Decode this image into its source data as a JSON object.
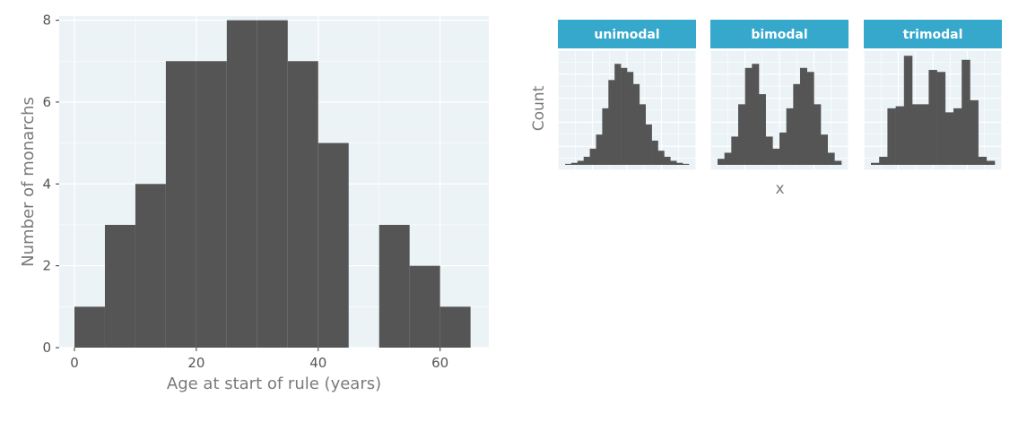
{
  "colors": {
    "panel_bg": "#ebf3f6",
    "grid": "#ffffff",
    "bar": "#555555",
    "strip": "#36a8cc",
    "strip_text": "#ffffff"
  },
  "chart_data": [
    {
      "type": "bar",
      "title": "",
      "xlabel": "Age at start of rule (years)",
      "ylabel": "Number of monarchs",
      "binwidth": 5,
      "bins": [
        {
          "x0": 0,
          "x1": 5,
          "count": 1
        },
        {
          "x0": 5,
          "x1": 10,
          "count": 3
        },
        {
          "x0": 10,
          "x1": 15,
          "count": 4
        },
        {
          "x0": 15,
          "x1": 20,
          "count": 7
        },
        {
          "x0": 20,
          "x1": 25,
          "count": 7
        },
        {
          "x0": 25,
          "x1": 30,
          "count": 8
        },
        {
          "x0": 30,
          "x1": 35,
          "count": 8
        },
        {
          "x0": 35,
          "x1": 40,
          "count": 7
        },
        {
          "x0": 40,
          "x1": 45,
          "count": 5
        },
        {
          "x0": 45,
          "x1": 50,
          "count": 0
        },
        {
          "x0": 50,
          "x1": 55,
          "count": 3
        },
        {
          "x0": 55,
          "x1": 60,
          "count": 2
        },
        {
          "x0": 60,
          "x1": 65,
          "count": 1
        }
      ],
      "xticks": [
        "0",
        "20",
        "40",
        "60"
      ],
      "yticks": [
        "0",
        "2",
        "4",
        "6",
        "8"
      ],
      "xlim": [
        -2.5,
        68
      ],
      "ylim": [
        0,
        8.1
      ],
      "grid": true
    },
    {
      "type": "bar",
      "title": "",
      "xlabel": "x",
      "ylabel": "Count",
      "facets": [
        {
          "label": "unimodal",
          "counts": [
            0.5,
            1,
            2,
            4,
            8,
            15,
            28,
            42,
            50,
            48,
            46,
            40,
            30,
            20,
            12,
            7,
            4,
            2,
            1,
            0.5
          ]
        },
        {
          "label": "bimodal",
          "counts": [
            3,
            6,
            14,
            30,
            48,
            50,
            35,
            14,
            8,
            16,
            28,
            40,
            48,
            46,
            30,
            15,
            6,
            2
          ]
        },
        {
          "label": "trimodal",
          "counts": [
            1,
            4,
            28,
            29,
            54,
            30,
            30,
            47,
            46,
            26,
            28,
            52,
            32,
            4,
            2
          ]
        }
      ],
      "ylim": [
        0,
        55
      ],
      "grid": true
    }
  ]
}
